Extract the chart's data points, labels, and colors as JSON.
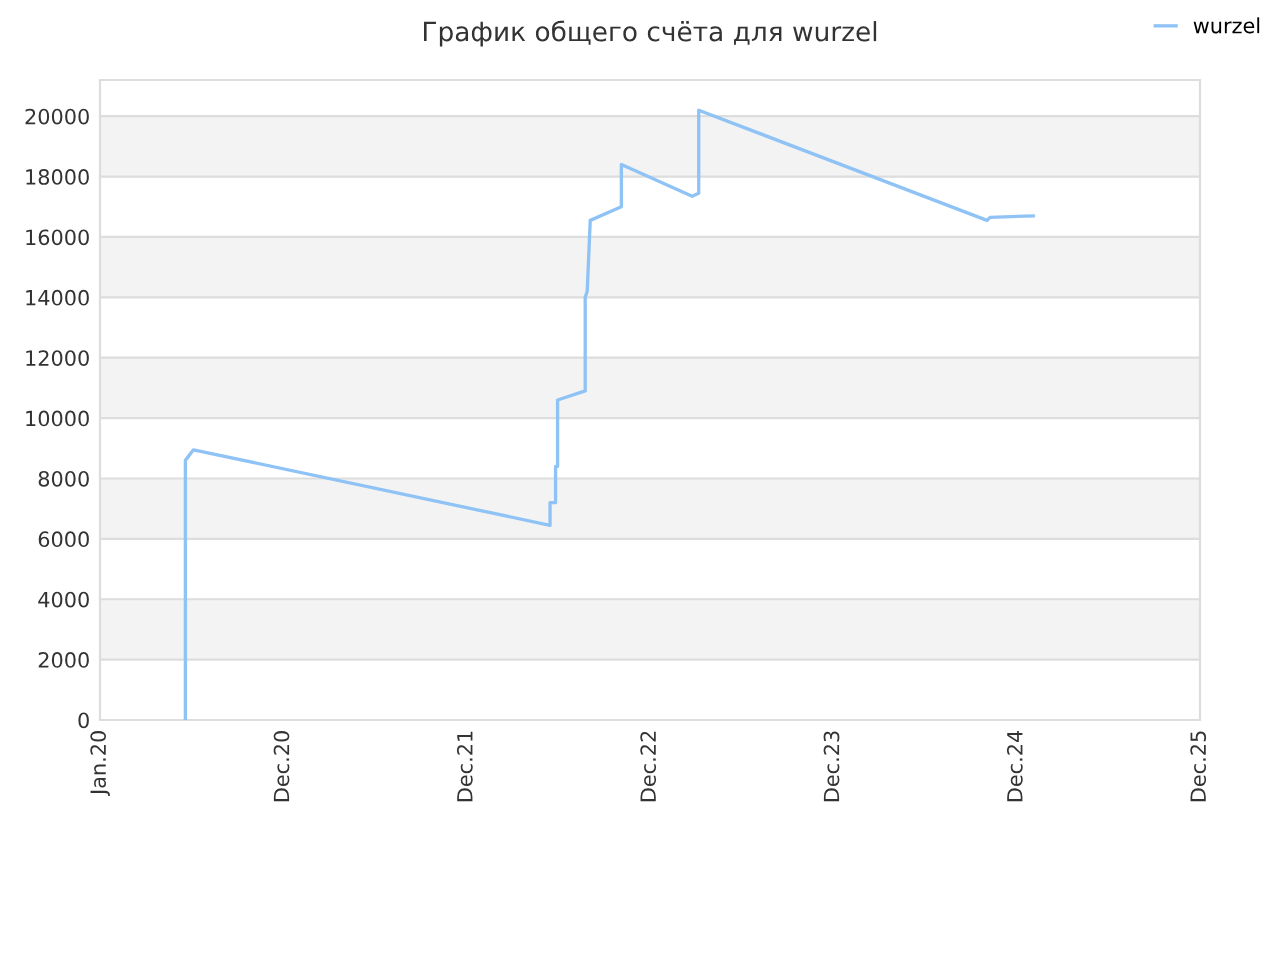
{
  "chart_data": {
    "type": "line",
    "title": "График общего счёта для wurzel",
    "x": [
      "2020-06-19",
      "2020-06-19",
      "2020-07-05",
      "2022-06-15",
      "2022-06-15",
      "2022-06-26",
      "2022-06-26",
      "2022-06-30",
      "2022-06-30",
      "2022-08-24",
      "2022-08-24",
      "2022-08-28",
      "2022-09-03",
      "2022-11-04",
      "2022-11-04",
      "2023-03-25",
      "2023-04-07",
      "2023-04-07",
      "2024-11-01",
      "2024-11-07",
      "2025-02-01"
    ],
    "series": [
      {
        "name": "wurzel",
        "color": "#90c3f5",
        "values": [
          0,
          8600,
          8950,
          6450,
          7200,
          7200,
          8400,
          8400,
          10600,
          10900,
          14000,
          14200,
          16550,
          17000,
          18400,
          17350,
          17450,
          20200,
          16550,
          16650,
          16700
        ]
      }
    ],
    "xlim": [
      "2020-01-01",
      "2025-12-30"
    ],
    "xticks": [
      {
        "value": "2020-01-01",
        "label": "Jan.20"
      },
      {
        "value": "2020-12-31",
        "label": "Dec.20"
      },
      {
        "value": "2021-12-31",
        "label": "Dec.21"
      },
      {
        "value": "2022-12-31",
        "label": "Dec.22"
      },
      {
        "value": "2023-12-31",
        "label": "Dec.23"
      },
      {
        "value": "2024-12-30",
        "label": "Dec.24"
      },
      {
        "value": "2025-12-30",
        "label": "Dec.25"
      }
    ],
    "ylim": [
      0,
      21200
    ],
    "yticks": [
      0,
      2000,
      4000,
      6000,
      8000,
      10000,
      12000,
      14000,
      16000,
      18000,
      20000
    ],
    "grid": "y",
    "legend": "top right",
    "marker": "none",
    "line_style": "solid"
  }
}
